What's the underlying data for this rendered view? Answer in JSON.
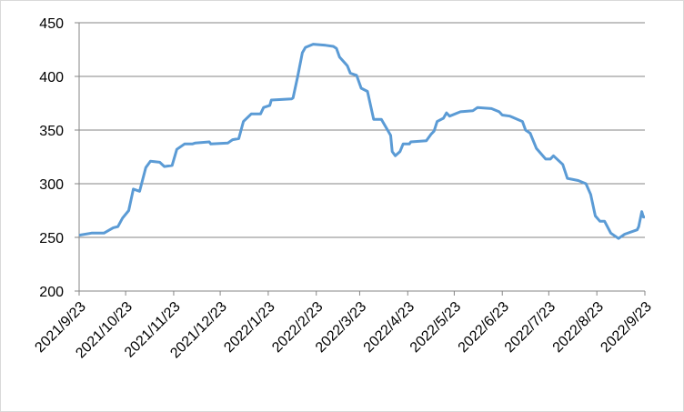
{
  "chart_data": {
    "type": "line",
    "x": [
      "2021-09-23",
      "2021-10-01",
      "2021-10-09",
      "2021-10-15",
      "2021-10-18",
      "2021-10-21",
      "2021-10-25",
      "2021-10-28",
      "2021-11-01",
      "2021-11-05",
      "2021-11-08",
      "2021-11-14",
      "2021-11-17",
      "2021-11-22",
      "2021-11-25",
      "2021-11-30",
      "2021-12-05",
      "2021-12-07",
      "2021-12-16",
      "2021-12-17",
      "2021-12-28",
      "2021-12-31",
      "2022-01-04",
      "2022-01-07",
      "2022-01-12",
      "2022-01-18",
      "2022-01-20",
      "2022-01-24",
      "2022-01-25",
      "2022-02-07",
      "2022-02-08",
      "2022-02-11",
      "2022-02-14",
      "2022-02-16",
      "2022-02-21",
      "2022-03-01",
      "2022-03-06",
      "2022-03-08",
      "2022-03-10",
      "2022-03-15",
      "2022-03-17",
      "2022-03-21",
      "2022-03-24",
      "2022-03-28",
      "2022-04-01",
      "2022-04-06",
      "2022-04-12",
      "2022-04-13",
      "2022-04-15",
      "2022-04-18",
      "2022-04-20",
      "2022-04-24",
      "2022-04-25",
      "2022-05-05",
      "2022-05-08",
      "2022-05-10",
      "2022-05-12",
      "2022-05-16",
      "2022-05-18",
      "2022-05-20",
      "2022-05-27",
      "2022-06-04",
      "2022-06-07",
      "2022-06-16",
      "2022-06-21",
      "2022-06-23",
      "2022-06-28",
      "2022-07-06",
      "2022-07-08",
      "2022-07-11",
      "2022-07-15",
      "2022-07-21",
      "2022-07-24",
      "2022-07-26",
      "2022-08-01",
      "2022-08-04",
      "2022-08-11",
      "2022-08-16",
      "2022-08-19",
      "2022-08-22",
      "2022-08-25",
      "2022-08-28",
      "2022-09-01",
      "2022-09-06",
      "2022-09-10",
      "2022-09-18",
      "2022-09-19",
      "2022-09-21",
      "2022-09-22",
      "2022-09-23"
    ],
    "values": [
      252,
      254,
      254,
      259,
      260,
      268,
      275,
      295,
      293,
      315,
      321,
      320,
      316,
      317,
      332,
      337,
      337,
      338,
      339,
      337,
      338,
      341,
      342,
      358,
      365,
      365,
      371,
      373,
      378,
      379,
      380,
      400,
      422,
      427,
      430,
      429,
      428,
      426,
      418,
      410,
      403,
      401,
      389,
      386,
      360,
      360,
      345,
      330,
      326,
      330,
      337,
      337,
      339,
      340,
      346,
      349,
      358,
      361,
      366,
      363,
      367,
      368,
      371,
      370,
      367,
      364,
      363,
      358,
      350,
      347,
      333,
      323,
      323,
      326,
      318,
      305,
      303,
      300,
      290,
      270,
      265,
      265,
      254,
      249,
      253,
      257,
      260,
      274,
      269,
      269
    ],
    "color": "#5b9bd5",
    "xlim": [
      "2021-09-23",
      "2022-09-23"
    ],
    "xticks": [
      {
        "value": "2021-09-23",
        "label": "2021/9/23"
      },
      {
        "value": "2021-10-23",
        "label": "2021/10/23"
      },
      {
        "value": "2021-11-23",
        "label": "2021/11/23"
      },
      {
        "value": "2021-12-23",
        "label": "2021/12/23"
      },
      {
        "value": "2022-01-23",
        "label": "2022/1/23"
      },
      {
        "value": "2022-02-23",
        "label": "2022/2/23"
      },
      {
        "value": "2022-03-23",
        "label": "2022/3/23"
      },
      {
        "value": "2022-04-23",
        "label": "2022/4/23"
      },
      {
        "value": "2022-05-23",
        "label": "2022/5/23"
      },
      {
        "value": "2022-06-23",
        "label": "2022/6/23"
      },
      {
        "value": "2022-07-23",
        "label": "2022/7/23"
      },
      {
        "value": "2022-08-23",
        "label": "2022/8/23"
      },
      {
        "value": "2022-09-23",
        "label": "2022/9/23"
      }
    ],
    "ylim": [
      200,
      450
    ],
    "yticks": [
      200,
      250,
      300,
      350,
      400,
      450
    ],
    "grid": true
  }
}
